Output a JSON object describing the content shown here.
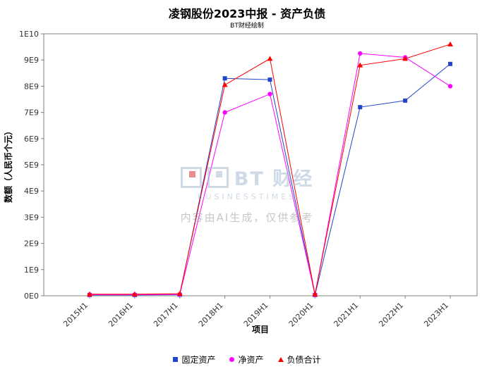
{
  "title": "凌钢股份2023中报 - 资产负债",
  "subtitle": "BT财经绘制",
  "watermark": {
    "logo_text": "BT 财经",
    "logo_sub": "BUSINESSTIMES",
    "disclaimer": "内容由AI生成，仅供参考"
  },
  "chart_data": {
    "type": "line",
    "title": "凌钢股份2023中报 - 资产负债",
    "subtitle": "BT财经绘制",
    "xlabel": "项目",
    "ylabel": "数额（人民币个元）",
    "categories": [
      "2015H1",
      "2016H1",
      "2017H1",
      "2018H1",
      "2019H1",
      "2020H1",
      "2021H1",
      "2022H1",
      "2023H1"
    ],
    "series": [
      {
        "name": "固定资产",
        "color": "#2244cc",
        "marker": "square",
        "values": [
          30000000,
          30000000,
          40000000,
          8300000000,
          8250000000,
          30000000,
          7200000000,
          7450000000,
          8850000000
        ]
      },
      {
        "name": "净资产",
        "color": "#ff00ff",
        "marker": "circle",
        "values": [
          40000000,
          40000000,
          50000000,
          7000000000,
          7700000000,
          40000000,
          9250000000,
          9100000000,
          8000000000
        ]
      },
      {
        "name": "负债合计",
        "color": "#ff0000",
        "marker": "triangle",
        "values": [
          60000000,
          60000000,
          80000000,
          8050000000,
          9050000000,
          60000000,
          8800000000,
          9050000000,
          9600000000
        ]
      }
    ],
    "ylim": [
      0,
      10000000000
    ],
    "ytick_labels": [
      "0E0",
      "1E9",
      "2E9",
      "3E9",
      "4E9",
      "5E9",
      "6E9",
      "7E9",
      "8E9",
      "9E9",
      "1E10"
    ],
    "grid": false,
    "legend_position": "bottom",
    "axis_color": "#808080",
    "text_color": "#333333"
  }
}
